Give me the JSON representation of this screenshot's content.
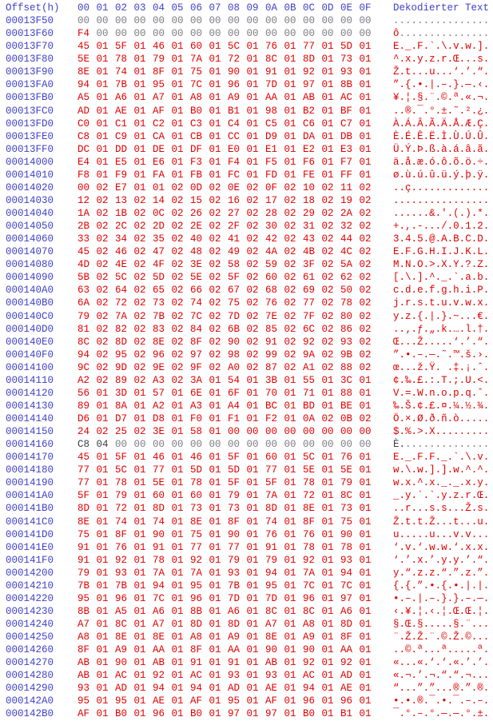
{
  "colors": {
    "offset_blue": "#4040c8",
    "modified_red": "#e10000",
    "zero_gray": "#7b7b83",
    "original_dark": "#3c3c44",
    "background": "#ffffff"
  },
  "header": {
    "offset_label": "Offset(h)",
    "byte_labels": [
      "00",
      "01",
      "02",
      "03",
      "04",
      "05",
      "06",
      "07",
      "08",
      "09",
      "0A",
      "0B",
      "0C",
      "0D",
      "0E",
      "0F"
    ],
    "decoded_label": "Dekodierter Text"
  },
  "rows": [
    {
      "offset": "00013F50",
      "bytes": "00 00 00 00 00 00 00 00 00 00 00 00 00 00 00 00",
      "text": "................",
      "state": "orig"
    },
    {
      "offset": "00013F60",
      "bytes": "F4 00 00 00 00 00 00 00 00 00 00 00 00 00 00 00",
      "text": "ô...............",
      "state": "firstmod"
    },
    {
      "offset": "00013F70",
      "bytes": "45 01 5F 01 46 01 60 01 5C 01 76 01 77 01 5D 01",
      "text": "E._.F.`.\\.v.w.].",
      "state": "mod"
    },
    {
      "offset": "00013F80",
      "bytes": "5E 01 78 01 79 01 7A 01 72 01 8C 01 8D 01 73 01",
      "text": "^.x.y.z.r.Œ...s.",
      "state": "mod"
    },
    {
      "offset": "00013F90",
      "bytes": "8E 01 74 01 8F 01 75 01 90 01 91 01 92 01 93 01",
      "text": "Ž.t...u...‘.’.“.",
      "state": "mod"
    },
    {
      "offset": "00013FA0",
      "bytes": "94 01 7B 01 95 01 7C 01 96 01 7D 01 97 01 8B 01",
      "text": "”.{.•.|.–.}.—.‹.",
      "state": "mod"
    },
    {
      "offset": "00013FB0",
      "bytes": "A5 01 A6 01 A7 01 A8 01 A9 01 AA 01 AB 01 AC 01",
      "text": "¥.¦.§.¨.©.ª.«.¬.",
      "state": "mod"
    },
    {
      "offset": "00013FC0",
      "bytes": "AD 01 AE 01 AF 01 B0 01 B1 01 98 01 B2 01 BF 01",
      "text": "..®.¯.°.±.˜.².¿.",
      "state": "mod"
    },
    {
      "offset": "00013FD0",
      "bytes": "C0 01 C1 01 C2 01 C3 01 C4 01 C5 01 C6 01 C7 01",
      "text": "À.Á.Â.Ã.Ä.Å.Æ.Ç.",
      "state": "mod"
    },
    {
      "offset": "00013FE0",
      "bytes": "C8 01 C9 01 CA 01 CB 01 CC 01 D9 01 DA 01 DB 01",
      "text": "È.É.Ê.Ë.Ì.Ù.Ú.Û.",
      "state": "mod"
    },
    {
      "offset": "00013FF0",
      "bytes": "DC 01 DD 01 DE 01 DF 01 E0 01 E1 01 E2 01 E3 01",
      "text": "Ü.Ý.Þ.ß.à.á.â.ã.",
      "state": "mod"
    },
    {
      "offset": "00014000",
      "bytes": "E4 01 E5 01 E6 01 F3 01 F4 01 F5 01 F6 01 F7 01",
      "text": "ä.å.æ.ó.ô.õ.ö.÷.",
      "state": "mod"
    },
    {
      "offset": "00014010",
      "bytes": "F8 01 F9 01 FA 01 FB 01 FC 01 FD 01 FE 01 FF 01",
      "text": "ø.ù.ú.û.ü.ý.þ.ÿ.",
      "state": "mod"
    },
    {
      "offset": "00014020",
      "bytes": "00 02 E7 01 01 02 0D 02 0E 02 0F 02 10 02 11 02",
      "text": "..ç.............",
      "state": "mod"
    },
    {
      "offset": "00014030",
      "bytes": "12 02 13 02 14 02 15 02 16 02 17 02 18 02 19 02",
      "text": "................",
      "state": "mod"
    },
    {
      "offset": "00014040",
      "bytes": "1A 02 1B 02 0C 02 26 02 27 02 28 02 29 02 2A 02",
      "text": "......&.'.(.).*.",
      "state": "mod"
    },
    {
      "offset": "00014050",
      "bytes": "2B 02 2C 02 2D 02 2E 02 2F 02 30 02 31 02 32 02",
      "text": "+.,.-.../.0.1.2.",
      "state": "mod"
    },
    {
      "offset": "00014060",
      "bytes": "33 02 34 02 35 02 40 02 41 02 42 02 43 02 44 02",
      "text": "3.4.5.@.A.B.C.D.",
      "state": "mod"
    },
    {
      "offset": "00014070",
      "bytes": "45 02 46 02 47 02 48 02 49 02 4A 02 4B 02 4C 02",
      "text": "E.F.G.H.I.J.K.L.",
      "state": "mod"
    },
    {
      "offset": "00014080",
      "bytes": "4D 02 4E 02 4F 02 3E 02 58 02 59 02 3F 02 5A 02",
      "text": "M.N.O.>.X.Y.?.Z.",
      "state": "mod"
    },
    {
      "offset": "00014090",
      "bytes": "5B 02 5C 02 5D 02 5E 02 5F 02 60 02 61 02 62 02",
      "text": "[.\\.].^._.`.a.b.",
      "state": "mod"
    },
    {
      "offset": "000140A0",
      "bytes": "63 02 64 02 65 02 66 02 67 02 68 02 69 02 50 02",
      "text": "c.d.e.f.g.h.i.P.",
      "state": "mod"
    },
    {
      "offset": "000140B0",
      "bytes": "6A 02 72 02 73 02 74 02 75 02 76 02 77 02 78 02",
      "text": "j.r.s.t.u.v.w.x.",
      "state": "mod"
    },
    {
      "offset": "000140C0",
      "bytes": "79 02 7A 02 7B 02 7C 02 7D 02 7E 02 7F 02 80 02",
      "text": "y.z.{.|.}.~...€.",
      "state": "mod"
    },
    {
      "offset": "000140D0",
      "bytes": "81 02 82 02 83 02 84 02 6B 02 85 02 6C 02 86 02",
      "text": "..‚.ƒ.„.k.….l.†.",
      "state": "mod"
    },
    {
      "offset": "000140E0",
      "bytes": "8C 02 8D 02 8E 02 8F 02 90 02 91 02 92 02 93 02",
      "text": "Œ...Ž.....‘.’.“.",
      "state": "mod"
    },
    {
      "offset": "000140F0",
      "bytes": "94 02 95 02 96 02 97 02 98 02 99 02 9A 02 9B 02",
      "text": "”.•.–.—.˜.™.š.›.",
      "state": "mod"
    },
    {
      "offset": "00014100",
      "bytes": "9C 02 9D 02 9E 02 9F 02 A0 02 87 02 A1 02 88 02",
      "text": "œ...ž.Ÿ. .‡.¡.ˆ.",
      "state": "mod"
    },
    {
      "offset": "00014110",
      "bytes": "A2 02 89 02 A3 02 3A 01 54 01 3B 01 55 01 3C 01",
      "text": "¢.‰.£.:.T.;.U.<.",
      "state": "mod"
    },
    {
      "offset": "00014120",
      "bytes": "56 01 3D 01 57 01 6E 01 6F 01 70 01 71 01 88 01",
      "text": "V.=.W.n.o.p.q.ˆ.",
      "state": "mod"
    },
    {
      "offset": "00014130",
      "bytes": "89 01 8A 01 A2 01 A3 01 A4 01 BC 01 BD 01 BE 01",
      "text": "‰.Š.¢.£.¤.¼.½.¾.",
      "state": "mod"
    },
    {
      "offset": "00014140",
      "bytes": "D6 01 D7 01 D8 01 F0 01 F1 01 F2 01 0A 02 0B 02",
      "text": "Ö.×.Ø.ð.ñ.ò.....",
      "state": "mod"
    },
    {
      "offset": "00014150",
      "bytes": "24 02 25 02 3E 01 58 01 00 00 00 00 00 00 00 00",
      "text": "$.%.>.X.........",
      "state": "mod"
    },
    {
      "offset": "00014160",
      "bytes": "C8 04 00 00 00 00 00 00 00 00 00 00 00 00 00 00",
      "text": "È...............",
      "state": "orig"
    },
    {
      "offset": "00014170",
      "bytes": "45 01 5F 01 46 01 46 01 5F 01 60 01 5C 01 76 01",
      "text": "E._.F.F._.`.\\.v.",
      "state": "mod"
    },
    {
      "offset": "00014180",
      "bytes": "77 01 5C 01 77 01 5D 01 5D 01 77 01 5E 01 5E 01",
      "text": "w.\\.w.].].w.^.^.",
      "state": "mod"
    },
    {
      "offset": "00014190",
      "bytes": "77 01 78 01 5E 01 78 01 5F 01 5F 01 78 01 79 01",
      "text": "w.x.^.x._._.x.y.",
      "state": "mod"
    },
    {
      "offset": "000141A0",
      "bytes": "5F 01 79 01 60 01 60 01 79 01 7A 01 72 01 8C 01",
      "text": "_.y.`.`.y.z.r.Œ.",
      "state": "mod"
    },
    {
      "offset": "000141B0",
      "bytes": "8D 01 72 01 8D 01 73 01 73 01 8D 01 8E 01 73 01",
      "text": "..r...s.s...Ž.s.",
      "state": "mod"
    },
    {
      "offset": "000141C0",
      "bytes": "8E 01 74 01 74 01 8E 01 8F 01 74 01 8F 01 75 01",
      "text": "Ž.t.t.Ž...t...u.",
      "state": "mod"
    },
    {
      "offset": "000141D0",
      "bytes": "75 01 8F 01 90 01 75 01 90 01 76 01 76 01 90 01",
      "text": "u.....u...v.v...",
      "state": "mod"
    },
    {
      "offset": "000141E0",
      "bytes": "91 01 76 01 91 01 77 01 77 01 91 01 78 01 78 01",
      "text": "‘.v.‘.w.w.‘.x.x.",
      "state": "mod"
    },
    {
      "offset": "000141F0",
      "bytes": "91 01 92 01 78 01 92 01 79 01 79 01 92 01 93 01",
      "text": "‘.’.x.’.y.y.’.“.",
      "state": "mod"
    },
    {
      "offset": "00014200",
      "bytes": "79 01 93 01 7A 01 7A 01 93 01 94 01 7A 01 94 01",
      "text": "y.“.z.z.“.”.z.”.",
      "state": "mod"
    },
    {
      "offset": "00014210",
      "bytes": "7B 01 7B 01 94 01 95 01 7B 01 95 01 7C 01 7C 01",
      "text": "{.{.”.•.{.•.|.|.",
      "state": "mod"
    },
    {
      "offset": "00014220",
      "bytes": "95 01 96 01 7C 01 96 01 7D 01 7D 01 96 01 97 01",
      "text": "•.–.|.–.}.}.–.—.",
      "state": "mod"
    },
    {
      "offset": "00014230",
      "bytes": "8B 01 A5 01 A6 01 8B 01 A6 01 8C 01 8C 01 A6 01",
      "text": "‹.¥.¦.‹.¦.Œ.Œ.¦.",
      "state": "mod"
    },
    {
      "offset": "00014240",
      "bytes": "A7 01 8C 01 A7 01 8D 01 8D 01 A7 01 A8 01 8D 01",
      "text": "§.Œ.§.....§.¨...",
      "state": "mod"
    },
    {
      "offset": "00014250",
      "bytes": "A8 01 8E 01 8E 01 A8 01 A9 01 8E 01 A9 01 8F 01",
      "text": "¨.Ž.Ž.¨.©.Ž.©...",
      "state": "mod"
    },
    {
      "offset": "00014260",
      "bytes": "8F 01 A9 01 AA 01 8F 01 AA 01 90 01 90 01 AA 01",
      "text": "..©.ª...ª.....ª.",
      "state": "mod"
    },
    {
      "offset": "00014270",
      "bytes": "AB 01 90 01 AB 01 91 01 91 01 AB 01 92 01 92 01",
      "text": "«...«.‘.‘.«.’.’.",
      "state": "mod"
    },
    {
      "offset": "00014280",
      "bytes": "AB 01 AC 01 92 01 AC 01 93 01 93 01 AC 01 AD 01",
      "text": "«.¬.’.¬.“.“.¬...",
      "state": "mod"
    },
    {
      "offset": "00014290",
      "bytes": "93 01 AD 01 94 01 94 01 AD 01 AE 01 94 01 AE 01",
      "text": "“...”.”...®.”.®.",
      "state": "mod"
    },
    {
      "offset": "000142A0",
      "bytes": "95 01 95 01 AE 01 AF 01 95 01 AF 01 96 01 96 01",
      "text": "•.•.®.¯.•.¯.–.–.",
      "state": "mod"
    },
    {
      "offset": "000142B0",
      "bytes": "AF 01 B0 01 96 01 B0 01 97 01 97 01 B0 01 B1 01",
      "text": "¯.°.–.°.—.—.°.±.",
      "state": "mod"
    }
  ]
}
